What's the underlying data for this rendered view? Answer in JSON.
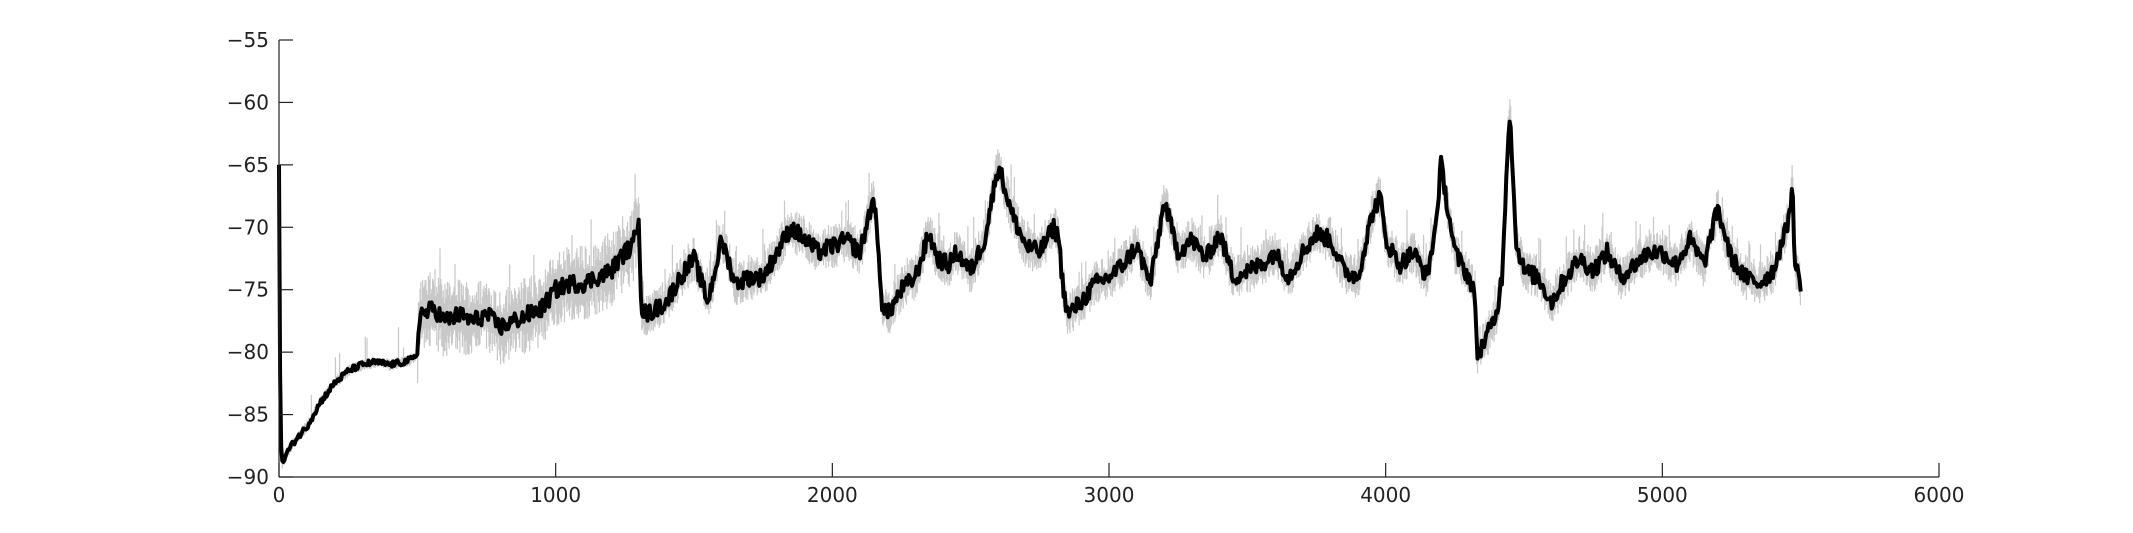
{
  "chart_data": {
    "type": "line",
    "title": "",
    "xlabel": "",
    "ylabel": "",
    "xlim": [
      0,
      6000
    ],
    "ylim": [
      -90,
      -55
    ],
    "x_ticks": [
      0,
      1000,
      2000,
      3000,
      4000,
      5000,
      6000
    ],
    "x_tick_labels": [
      "0",
      "1000",
      "2000",
      "3000",
      "4000",
      "5000",
      "6000"
    ],
    "y_ticks": [
      -90,
      -85,
      -80,
      -75,
      -70,
      -65,
      -60,
      -55
    ],
    "y_tick_labels": [
      "−90",
      "−85",
      "−80",
      "−75",
      "−70",
      "−65",
      "−60",
      "−55"
    ],
    "grid": false,
    "legend": "none",
    "colors": {
      "mean_line": "#000000",
      "band": "#c8c8c8",
      "axis": "#222222"
    },
    "series": [
      {
        "role": "mean",
        "x": [
          0,
          5,
          10,
          30,
          60,
          100,
          150,
          200,
          250,
          300,
          350,
          400,
          450,
          490,
          500,
          510,
          520,
          560,
          600,
          650,
          700,
          750,
          800,
          850,
          900,
          950,
          1000,
          1050,
          1100,
          1150,
          1200,
          1250,
          1280,
          1300,
          1310,
          1330,
          1400,
          1450,
          1500,
          1550,
          1600,
          1650,
          1700,
          1750,
          1800,
          1850,
          1900,
          1950,
          2000,
          2050,
          2100,
          2150,
          2180,
          2200,
          2250,
          2300,
          2350,
          2380,
          2420,
          2450,
          2500,
          2550,
          2600,
          2650,
          2700,
          2750,
          2800,
          2820,
          2830,
          2850,
          2900,
          2950,
          3000,
          3050,
          3100,
          3150,
          3200,
          3250,
          3300,
          3350,
          3400,
          3450,
          3500,
          3550,
          3600,
          3650,
          3700,
          3750,
          3800,
          3850,
          3900,
          3950,
          3980,
          4000,
          4050,
          4100,
          4150,
          4180,
          4200,
          4250,
          4300,
          4320,
          4330,
          4350,
          4400,
          4420,
          4440,
          4450,
          4470,
          4500,
          4550,
          4600,
          4650,
          4700,
          4750,
          4800,
          4850,
          4900,
          4950,
          5000,
          5050,
          5100,
          5150,
          5200,
          5250,
          5300,
          5350,
          5400,
          5450,
          5470,
          5480,
          5500
        ],
        "y": [
          -65,
          -86,
          -89,
          -88,
          -87,
          -86,
          -84,
          -82.5,
          -81.5,
          -81,
          -80.8,
          -81,
          -80.8,
          -80.5,
          -80,
          -76.5,
          -77,
          -76.5,
          -77.5,
          -77,
          -77.5,
          -77,
          -78,
          -77.5,
          -77,
          -76.5,
          -75,
          -74.5,
          -74.5,
          -74,
          -73.5,
          -72,
          -71.5,
          -69,
          -76.5,
          -77,
          -76,
          -74,
          -72.5,
          -76,
          -71,
          -74.5,
          -74,
          -74,
          -72,
          -70,
          -71,
          -72,
          -71.5,
          -71,
          -72,
          -67.5,
          -76,
          -77,
          -75,
          -74,
          -70.5,
          -72.5,
          -73,
          -72,
          -73.5,
          -71,
          -65,
          -69,
          -71.5,
          -72,
          -70,
          -71,
          -74,
          -77,
          -76,
          -74.5,
          -74,
          -73,
          -71.5,
          -74.5,
          -68,
          -72,
          -71,
          -72.5,
          -70.5,
          -74,
          -73.5,
          -73,
          -72,
          -74,
          -72,
          -70.5,
          -71,
          -73.5,
          -74,
          -69,
          -67.5,
          -71,
          -73,
          -72,
          -74,
          -70,
          -65,
          -72,
          -74,
          -75,
          -80,
          -79.5,
          -77,
          -74,
          -64,
          -60.5,
          -71,
          -73.5,
          -74,
          -76,
          -74,
          -72.5,
          -73.5,
          -72,
          -74,
          -73,
          -72,
          -72,
          -73,
          -71,
          -73,
          -68.5,
          -72.5,
          -74,
          -74.5,
          -73.5,
          -70,
          -67,
          -73,
          -74.5
        ]
      }
    ]
  }
}
